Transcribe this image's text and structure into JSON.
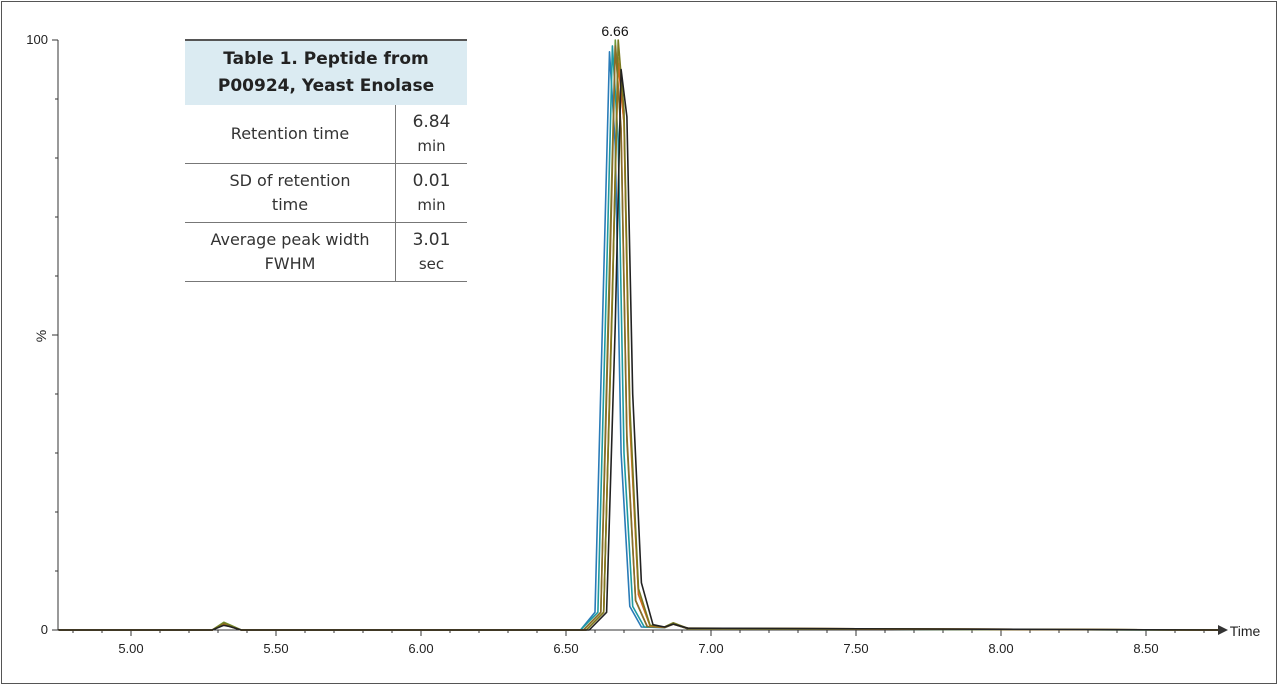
{
  "chart_data": {
    "type": "line",
    "title": "",
    "xlabel": "Time",
    "ylabel": "%",
    "xlim": [
      4.75,
      8.75
    ],
    "ylim": [
      0,
      100
    ],
    "x_ticks": [
      "5.00",
      "5.50",
      "6.00",
      "6.50",
      "7.00",
      "7.50",
      "8.00",
      "8.50"
    ],
    "y_ticks": [
      "0",
      "100"
    ],
    "peak_label": "6.66",
    "series_colors": [
      "#2a7bb8",
      "#1e9aa0",
      "#6e9a3a",
      "#8a6a2a",
      "#c98a3a",
      "#d2691e",
      "#7a7a20",
      "#222222"
    ],
    "series": [
      {
        "x": [
          4.75,
          5.28,
          5.32,
          5.34,
          5.38,
          6.55,
          6.6,
          6.63,
          6.65,
          6.67,
          6.69,
          6.72,
          6.76,
          6.84,
          6.87,
          6.92,
          8.75
        ],
        "y": [
          0,
          0,
          1.2,
          0.8,
          0,
          0,
          3,
          60,
          98,
          82,
          30,
          4,
          0.5,
          0.4,
          1.1,
          0.2,
          0
        ]
      },
      {
        "x": [
          4.75,
          5.28,
          5.32,
          5.34,
          5.38,
          6.55,
          6.61,
          6.64,
          6.66,
          6.68,
          6.7,
          6.73,
          6.77,
          6.84,
          6.87,
          6.92,
          8.75
        ],
        "y": [
          0,
          0,
          1.0,
          0.7,
          0,
          0,
          3,
          60,
          99,
          83,
          30,
          4,
          0.5,
          0.4,
          1.0,
          0.2,
          0
        ]
      },
      {
        "x": [
          4.75,
          5.28,
          5.32,
          5.34,
          5.38,
          6.56,
          6.62,
          6.65,
          6.67,
          6.69,
          6.71,
          6.74,
          6.78,
          6.84,
          6.87,
          6.92,
          8.75
        ],
        "y": [
          0,
          0,
          1.3,
          0.9,
          0,
          0,
          3,
          62,
          100,
          84,
          32,
          5,
          0.6,
          0.5,
          1.2,
          0.2,
          0
        ]
      },
      {
        "x": [
          4.75,
          5.28,
          5.32,
          5.34,
          5.38,
          6.56,
          6.62,
          6.65,
          6.67,
          6.69,
          6.71,
          6.74,
          6.78,
          6.84,
          6.87,
          6.92,
          8.75
        ],
        "y": [
          0,
          0,
          0.9,
          0.6,
          0,
          0,
          3,
          58,
          99,
          85,
          33,
          5,
          0.6,
          0.4,
          1.0,
          0.2,
          0
        ]
      },
      {
        "x": [
          4.75,
          5.28,
          5.32,
          5.34,
          5.38,
          6.57,
          6.63,
          6.66,
          6.68,
          6.7,
          6.72,
          6.75,
          6.79,
          6.84,
          6.87,
          6.92,
          8.75
        ],
        "y": [
          0,
          0,
          1.1,
          0.7,
          0,
          0,
          3,
          58,
          97,
          86,
          35,
          6,
          0.7,
          0.5,
          1.1,
          0.3,
          0
        ]
      },
      {
        "x": [
          4.75,
          5.28,
          5.32,
          5.34,
          5.38,
          6.57,
          6.63,
          6.66,
          6.68,
          6.7,
          6.72,
          6.75,
          6.79,
          6.84,
          6.87,
          6.92,
          8.75
        ],
        "y": [
          0,
          0,
          1.0,
          0.7,
          0,
          0,
          3,
          57,
          96,
          86,
          36,
          6,
          0.7,
          0.5,
          1.0,
          0.3,
          0
        ]
      },
      {
        "x": [
          4.75,
          5.28,
          5.32,
          5.34,
          5.38,
          6.57,
          6.63,
          6.66,
          6.68,
          6.7,
          6.72,
          6.75,
          6.79,
          6.84,
          6.87,
          6.92,
          8.75
        ],
        "y": [
          0,
          0,
          1.2,
          0.8,
          0,
          0,
          3,
          56,
          100,
          88,
          38,
          7,
          0.8,
          0.5,
          1.2,
          0.3,
          0
        ]
      },
      {
        "x": [
          4.75,
          5.28,
          5.32,
          5.34,
          5.38,
          6.58,
          6.64,
          6.67,
          6.69,
          6.71,
          6.73,
          6.76,
          6.8,
          6.84,
          6.87,
          6.92,
          8.75
        ],
        "y": [
          0,
          0,
          0.8,
          0.6,
          0,
          0,
          3,
          52,
          95,
          87,
          40,
          8,
          0.9,
          0.5,
          1.0,
          0.3,
          0
        ]
      }
    ]
  },
  "table": {
    "title": "Table 1. Peptide from P00924, Yeast Enolase",
    "rows": [
      {
        "label": "Retention time",
        "value": "6.84",
        "unit": "min"
      },
      {
        "label": "SD of retention time",
        "value": "0.01",
        "unit": "min"
      },
      {
        "label": "Average peak width FWHM",
        "value": "3.01",
        "unit": "sec"
      }
    ]
  }
}
